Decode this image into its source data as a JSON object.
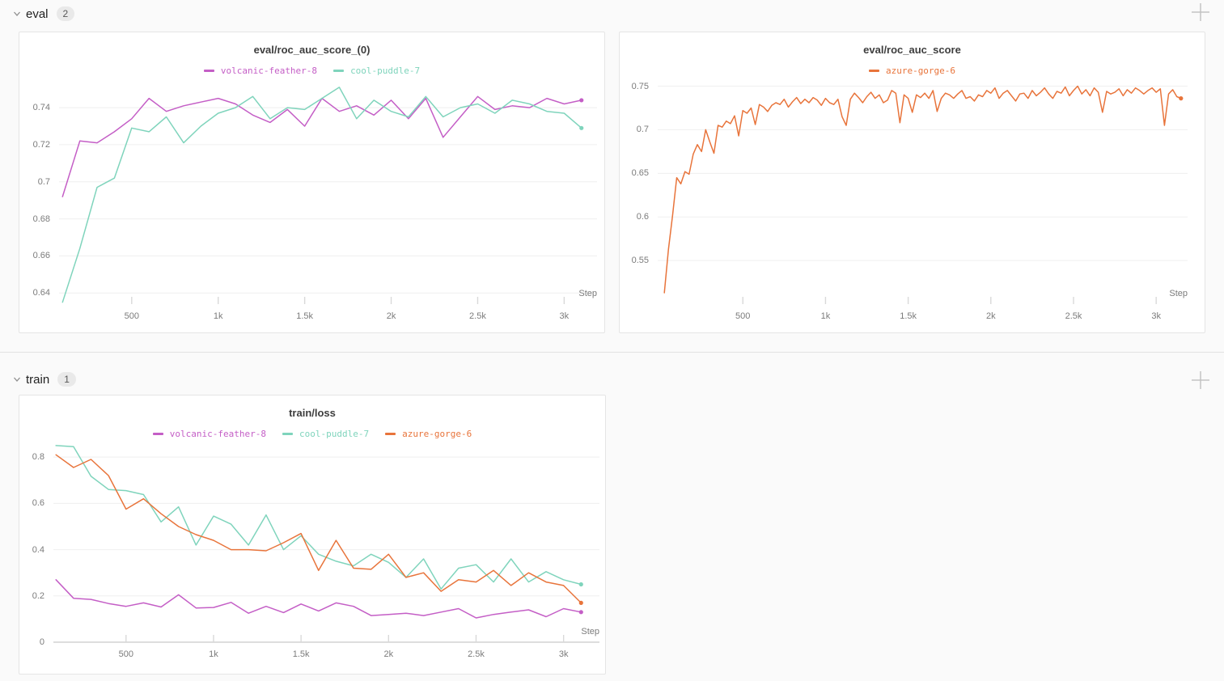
{
  "page": {
    "background": "#fafafa",
    "panel_border": "#e5e5e5"
  },
  "sections": [
    {
      "label": "eval",
      "count": "2",
      "collapse_icon": "chevron-down-icon",
      "add_icon": "plus-icon"
    },
    {
      "label": "train",
      "count": "1",
      "collapse_icon": "chevron-down-icon",
      "add_icon": "plus-icon"
    }
  ],
  "chart_data": [
    {
      "type": "line",
      "title": "eval/roc_auc_score_(0)",
      "xlabel": "Step",
      "x_range": [
        80,
        3190
      ],
      "y_range": [
        0.634,
        0.754
      ],
      "grid": true,
      "legend_position": "top-center",
      "x_ticks": [
        {
          "v": 500,
          "label": "500"
        },
        {
          "v": 1000,
          "label": "1k"
        },
        {
          "v": 1500,
          "label": "1.5k"
        },
        {
          "v": 2000,
          "label": "2k"
        },
        {
          "v": 2500,
          "label": "2.5k"
        },
        {
          "v": 3000,
          "label": "3k"
        }
      ],
      "y_ticks": [
        {
          "v": 0.64,
          "label": "0.64"
        },
        {
          "v": 0.66,
          "label": "0.66"
        },
        {
          "v": 0.68,
          "label": "0.68"
        },
        {
          "v": 0.7,
          "label": "0.7"
        },
        {
          "v": 0.72,
          "label": "0.72"
        },
        {
          "v": 0.74,
          "label": "0.74"
        }
      ],
      "series": [
        {
          "name": "volcanic-feather-8",
          "color": "#c45ec6",
          "x_start": 100,
          "x_step": 100,
          "end_dot": true,
          "values": [
            0.692,
            0.722,
            0.721,
            0.727,
            0.734,
            0.745,
            0.738,
            0.741,
            0.743,
            0.745,
            0.742,
            0.736,
            0.732,
            0.739,
            0.73,
            0.745,
            0.738,
            0.741,
            0.736,
            0.744,
            0.734,
            0.745,
            0.724,
            0.735,
            0.746,
            0.739,
            0.741,
            0.74,
            0.745,
            0.742,
            0.744
          ]
        },
        {
          "name": "cool-puddle-7",
          "color": "#7fd4bc",
          "x_start": 100,
          "x_step": 100,
          "end_dot": true,
          "values": [
            0.635,
            0.664,
            0.697,
            0.702,
            0.729,
            0.727,
            0.735,
            0.721,
            0.73,
            0.737,
            0.74,
            0.746,
            0.734,
            0.74,
            0.739,
            0.745,
            0.751,
            0.734,
            0.744,
            0.738,
            0.735,
            0.746,
            0.735,
            0.74,
            0.742,
            0.737,
            0.744,
            0.742,
            0.738,
            0.737,
            0.729
          ]
        }
      ]
    },
    {
      "type": "line",
      "title": "eval/roc_auc_score",
      "xlabel": "Step",
      "x_range": [
        -15,
        3190
      ],
      "y_range": [
        0.5,
        0.757
      ],
      "grid": true,
      "legend_position": "top-center",
      "x_ticks": [
        {
          "v": 500,
          "label": "500"
        },
        {
          "v": 1000,
          "label": "1k"
        },
        {
          "v": 1500,
          "label": "1.5k"
        },
        {
          "v": 2000,
          "label": "2k"
        },
        {
          "v": 2500,
          "label": "2.5k"
        },
        {
          "v": 3000,
          "label": "3k"
        }
      ],
      "y_ticks": [
        {
          "v": 0.55,
          "label": "0.55"
        },
        {
          "v": 0.6,
          "label": "0.6"
        },
        {
          "v": 0.65,
          "label": "0.65"
        },
        {
          "v": 0.7,
          "label": "0.7"
        },
        {
          "v": 0.75,
          "label": "0.75"
        }
      ],
      "series": [
        {
          "name": "azure-gorge-6",
          "color": "#e8743b",
          "x_start": 25,
          "x_step": 25,
          "end_dot": true,
          "values": [
            0.513,
            0.563,
            0.602,
            0.645,
            0.638,
            0.652,
            0.649,
            0.672,
            0.683,
            0.675,
            0.7,
            0.686,
            0.673,
            0.705,
            0.703,
            0.71,
            0.707,
            0.716,
            0.693,
            0.722,
            0.719,
            0.725,
            0.706,
            0.729,
            0.726,
            0.721,
            0.728,
            0.731,
            0.729,
            0.735,
            0.726,
            0.732,
            0.737,
            0.73,
            0.735,
            0.731,
            0.737,
            0.734,
            0.728,
            0.736,
            0.731,
            0.729,
            0.735,
            0.715,
            0.705,
            0.735,
            0.742,
            0.737,
            0.731,
            0.738,
            0.743,
            0.736,
            0.74,
            0.731,
            0.734,
            0.745,
            0.742,
            0.708,
            0.74,
            0.736,
            0.72,
            0.74,
            0.737,
            0.742,
            0.736,
            0.745,
            0.721,
            0.736,
            0.742,
            0.74,
            0.736,
            0.741,
            0.745,
            0.736,
            0.738,
            0.733,
            0.74,
            0.738,
            0.745,
            0.742,
            0.748,
            0.736,
            0.742,
            0.745,
            0.739,
            0.733,
            0.741,
            0.742,
            0.736,
            0.745,
            0.739,
            0.743,
            0.748,
            0.741,
            0.736,
            0.744,
            0.742,
            0.749,
            0.739,
            0.745,
            0.75,
            0.741,
            0.746,
            0.739,
            0.748,
            0.743,
            0.72,
            0.744,
            0.741,
            0.743,
            0.747,
            0.739,
            0.746,
            0.742,
            0.748,
            0.745,
            0.741,
            0.745,
            0.748,
            0.743,
            0.747,
            0.705,
            0.741,
            0.746,
            0.738,
            0.736
          ]
        }
      ]
    },
    {
      "type": "line",
      "title": "train/loss",
      "xlabel": "Step",
      "x_range": [
        85,
        3205
      ],
      "y_range": [
        0,
        0.86
      ],
      "grid": true,
      "legend_position": "top-center",
      "x_ticks": [
        {
          "v": 500,
          "label": "500"
        },
        {
          "v": 1000,
          "label": "1k"
        },
        {
          "v": 1500,
          "label": "1.5k"
        },
        {
          "v": 2000,
          "label": "2k"
        },
        {
          "v": 2500,
          "label": "2.5k"
        },
        {
          "v": 3000,
          "label": "3k"
        }
      ],
      "y_ticks": [
        {
          "v": 0,
          "label": "0"
        },
        {
          "v": 0.2,
          "label": "0.2"
        },
        {
          "v": 0.4,
          "label": "0.4"
        },
        {
          "v": 0.6,
          "label": "0.6"
        },
        {
          "v": 0.8,
          "label": "0.8"
        }
      ],
      "series": [
        {
          "name": "volcanic-feather-8",
          "color": "#c45ec6",
          "x_start": 100,
          "x_step": 100,
          "end_dot": true,
          "values": [
            0.27,
            0.19,
            0.185,
            0.167,
            0.155,
            0.17,
            0.152,
            0.205,
            0.148,
            0.15,
            0.172,
            0.125,
            0.155,
            0.128,
            0.165,
            0.135,
            0.17,
            0.155,
            0.115,
            0.12,
            0.125,
            0.115,
            0.13,
            0.145,
            0.105,
            0.12,
            0.13,
            0.14,
            0.11,
            0.145,
            0.13
          ]
        },
        {
          "name": "cool-puddle-7",
          "color": "#7fd4bc",
          "x_start": 100,
          "x_step": 100,
          "end_dot": true,
          "values": [
            0.85,
            0.845,
            0.717,
            0.66,
            0.655,
            0.638,
            0.52,
            0.585,
            0.42,
            0.545,
            0.51,
            0.42,
            0.55,
            0.4,
            0.46,
            0.38,
            0.35,
            0.33,
            0.38,
            0.345,
            0.28,
            0.36,
            0.23,
            0.32,
            0.335,
            0.26,
            0.36,
            0.26,
            0.305,
            0.27,
            0.25
          ]
        },
        {
          "name": "azure-gorge-6",
          "color": "#e8743b",
          "x_start": 100,
          "x_step": 100,
          "end_dot": true,
          "values": [
            0.81,
            0.755,
            0.79,
            0.72,
            0.575,
            0.62,
            0.555,
            0.5,
            0.465,
            0.44,
            0.4,
            0.4,
            0.395,
            0.43,
            0.47,
            0.31,
            0.44,
            0.32,
            0.315,
            0.38,
            0.28,
            0.3,
            0.22,
            0.27,
            0.26,
            0.31,
            0.245,
            0.3,
            0.26,
            0.245,
            0.17
          ]
        }
      ]
    }
  ]
}
